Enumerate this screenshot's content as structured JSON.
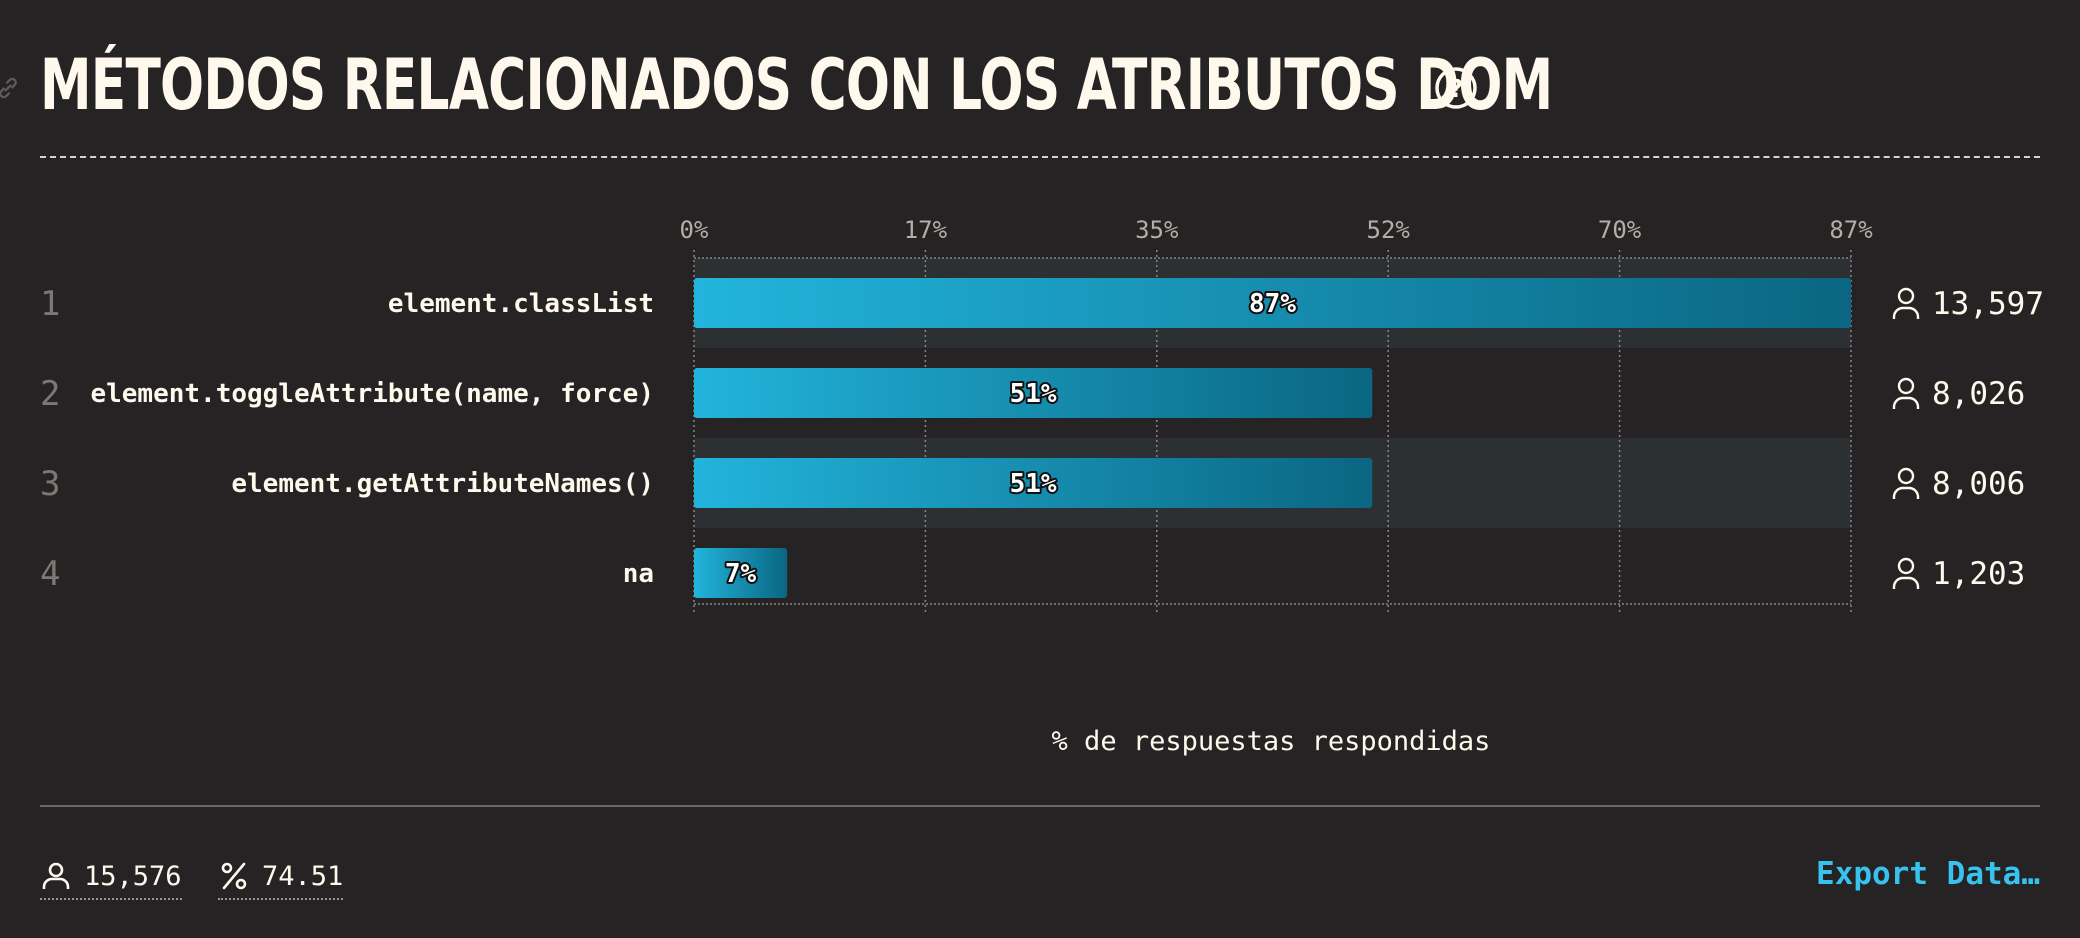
{
  "header": {
    "title": "MÉTODOS RELACIONADOS CON LOS ATRIBUTOS DOM"
  },
  "chart_data": {
    "type": "bar",
    "orientation": "horizontal",
    "categories": [
      "element.classList",
      "element.toggleAttribute(name, force)",
      "element.getAttributeNames()",
      "na"
    ],
    "ranks": [
      "1",
      "2",
      "3",
      "4"
    ],
    "values": [
      87,
      51,
      51,
      7
    ],
    "value_labels": [
      "87%",
      "51%",
      "51%",
      "7%"
    ],
    "counts": [
      "13,597",
      "8,026",
      "8,006",
      "1,203"
    ],
    "x_ticks": [
      "0%",
      "17%",
      "35%",
      "52%",
      "70%",
      "87%"
    ],
    "xlim": [
      0,
      87
    ],
    "xlabel": "% de respuestas respondidas",
    "grid": true,
    "colors": {
      "bar_start": "#22b4dc",
      "bar_end": "#0a6682",
      "band": "#2d3033"
    }
  },
  "footer": {
    "respondents": "15,576",
    "completion": "74.51",
    "export_label": "Export Data…"
  }
}
